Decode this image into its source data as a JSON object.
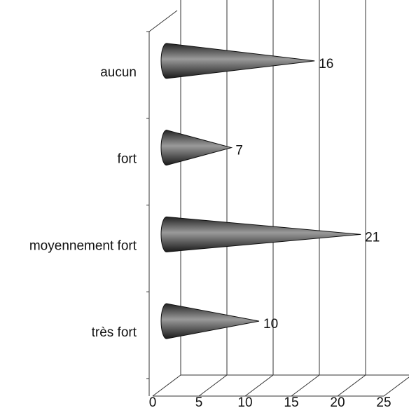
{
  "chart_data": {
    "type": "bar",
    "categories": [
      "aucun",
      "fort",
      "moyennement fort",
      "très fort"
    ],
    "values": [
      16,
      7,
      21,
      10
    ],
    "color": "#555555",
    "xlim": [
      0,
      25
    ],
    "xticks": [
      0,
      5,
      10,
      15,
      20,
      25
    ],
    "grid": true
  }
}
